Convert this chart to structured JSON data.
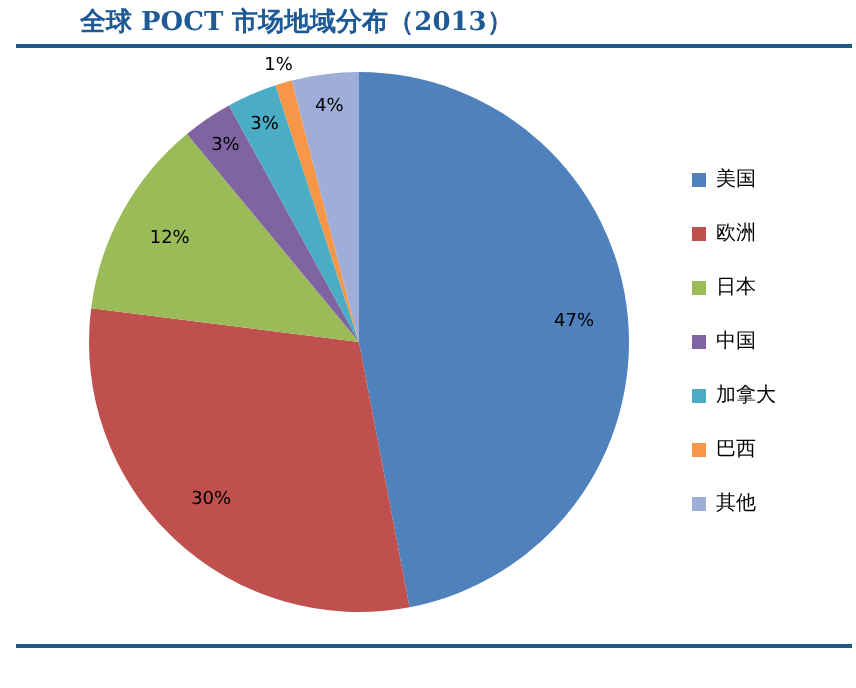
{
  "chart_data": {
    "type": "pie",
    "title": "全球 POCT 市场地域分布（2013）",
    "categories": [
      "美国",
      "欧洲",
      "日本",
      "中国",
      "加拿大",
      "巴西",
      "其他"
    ],
    "values": [
      47,
      30,
      12,
      3,
      3,
      1,
      4
    ],
    "colors": [
      "#4f81bd",
      "#c0504d",
      "#9bbb59",
      "#8064a2",
      "#4bacc6",
      "#f79646",
      "#9eaed8"
    ],
    "value_labels": [
      "47%",
      "30%",
      "12%",
      "3%",
      "3%",
      "1%",
      "4%"
    ],
    "legend": "right"
  }
}
